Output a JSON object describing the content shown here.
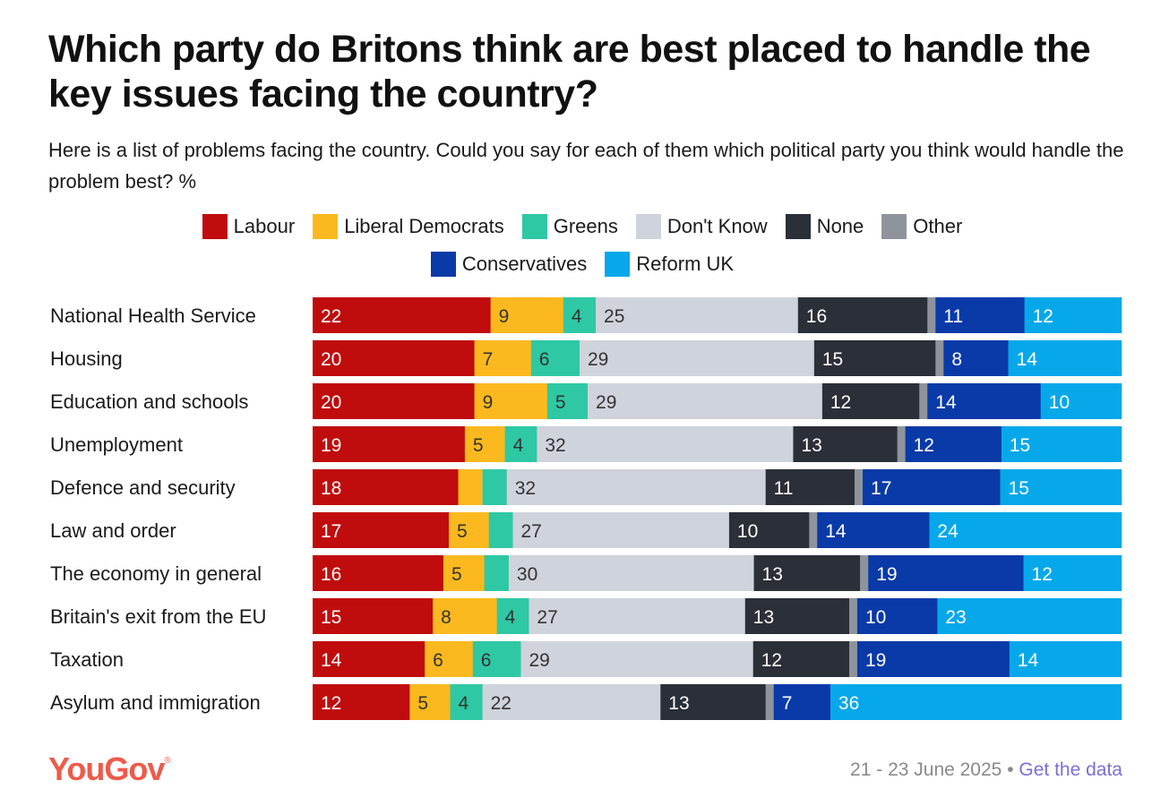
{
  "title": "Which party do Britons think are best placed to handle the key issues facing the country?",
  "subtitle": "Here is a list of problems facing the country. Could you say for each of them which political party you think would handle the problem best? %",
  "legend": [
    {
      "name": "Labour",
      "color": "#c00c0c"
    },
    {
      "name": "Liberal Democrats",
      "color": "#fbb91f"
    },
    {
      "name": "Greens",
      "color": "#2ec8a4"
    },
    {
      "name": "Don't Know",
      "color": "#cfd3dc"
    },
    {
      "name": "None",
      "color": "#2b2f38"
    },
    {
      "name": "Other",
      "color": "#8f949c"
    },
    {
      "name": "Conservatives",
      "color": "#0a3aa8"
    },
    {
      "name": "Reform UK",
      "color": "#06a8ea"
    }
  ],
  "chart_data": {
    "type": "bar",
    "orientation": "horizontal",
    "stacked": true,
    "xlim": [
      0,
      100
    ],
    "categories": [
      "National Health Service",
      "Housing",
      "Education and schools",
      "Unemployment",
      "Defence and security",
      "Law and order",
      "The economy in general",
      "Britain's exit from the EU",
      "Taxation",
      "Asylum and immigration"
    ],
    "series": [
      {
        "name": "Labour",
        "values": [
          22,
          20,
          20,
          19,
          18,
          17,
          16,
          15,
          14,
          12
        ]
      },
      {
        "name": "Liberal Democrats",
        "values": [
          9,
          7,
          9,
          5,
          3,
          5,
          5,
          8,
          6,
          5
        ]
      },
      {
        "name": "Greens",
        "values": [
          4,
          6,
          5,
          4,
          3,
          3,
          3,
          4,
          6,
          4
        ]
      },
      {
        "name": "Don't Know",
        "values": [
          25,
          29,
          29,
          32,
          32,
          27,
          30,
          27,
          29,
          22
        ]
      },
      {
        "name": "None",
        "values": [
          16,
          15,
          12,
          13,
          11,
          10,
          13,
          13,
          12,
          13
        ]
      },
      {
        "name": "Other",
        "values": [
          1,
          1,
          1,
          1,
          1,
          1,
          1,
          1,
          1,
          1
        ]
      },
      {
        "name": "Conservatives",
        "values": [
          11,
          8,
          14,
          12,
          17,
          14,
          19,
          10,
          19,
          7
        ]
      },
      {
        "name": "Reform UK",
        "values": [
          12,
          14,
          10,
          15,
          15,
          24,
          12,
          23,
          14,
          36
        ]
      }
    ],
    "labeled_series": [
      "Labour",
      "Liberal Democrats",
      "Greens",
      "Don't Know",
      "None",
      "Conservatives",
      "Reform UK"
    ],
    "min_label_value": 4,
    "label_colors": {
      "Labour": "#ffffff",
      "Liberal Democrats": "#333333",
      "Greens": "#333333",
      "Don't Know": "#333333",
      "None": "#ffffff",
      "Conservatives": "#ffffff",
      "Reform UK": "#ffffff"
    }
  },
  "footer": {
    "logo": "YouGov",
    "date": "21 - 23 June 2025",
    "separator": "•",
    "link": "Get the data"
  }
}
